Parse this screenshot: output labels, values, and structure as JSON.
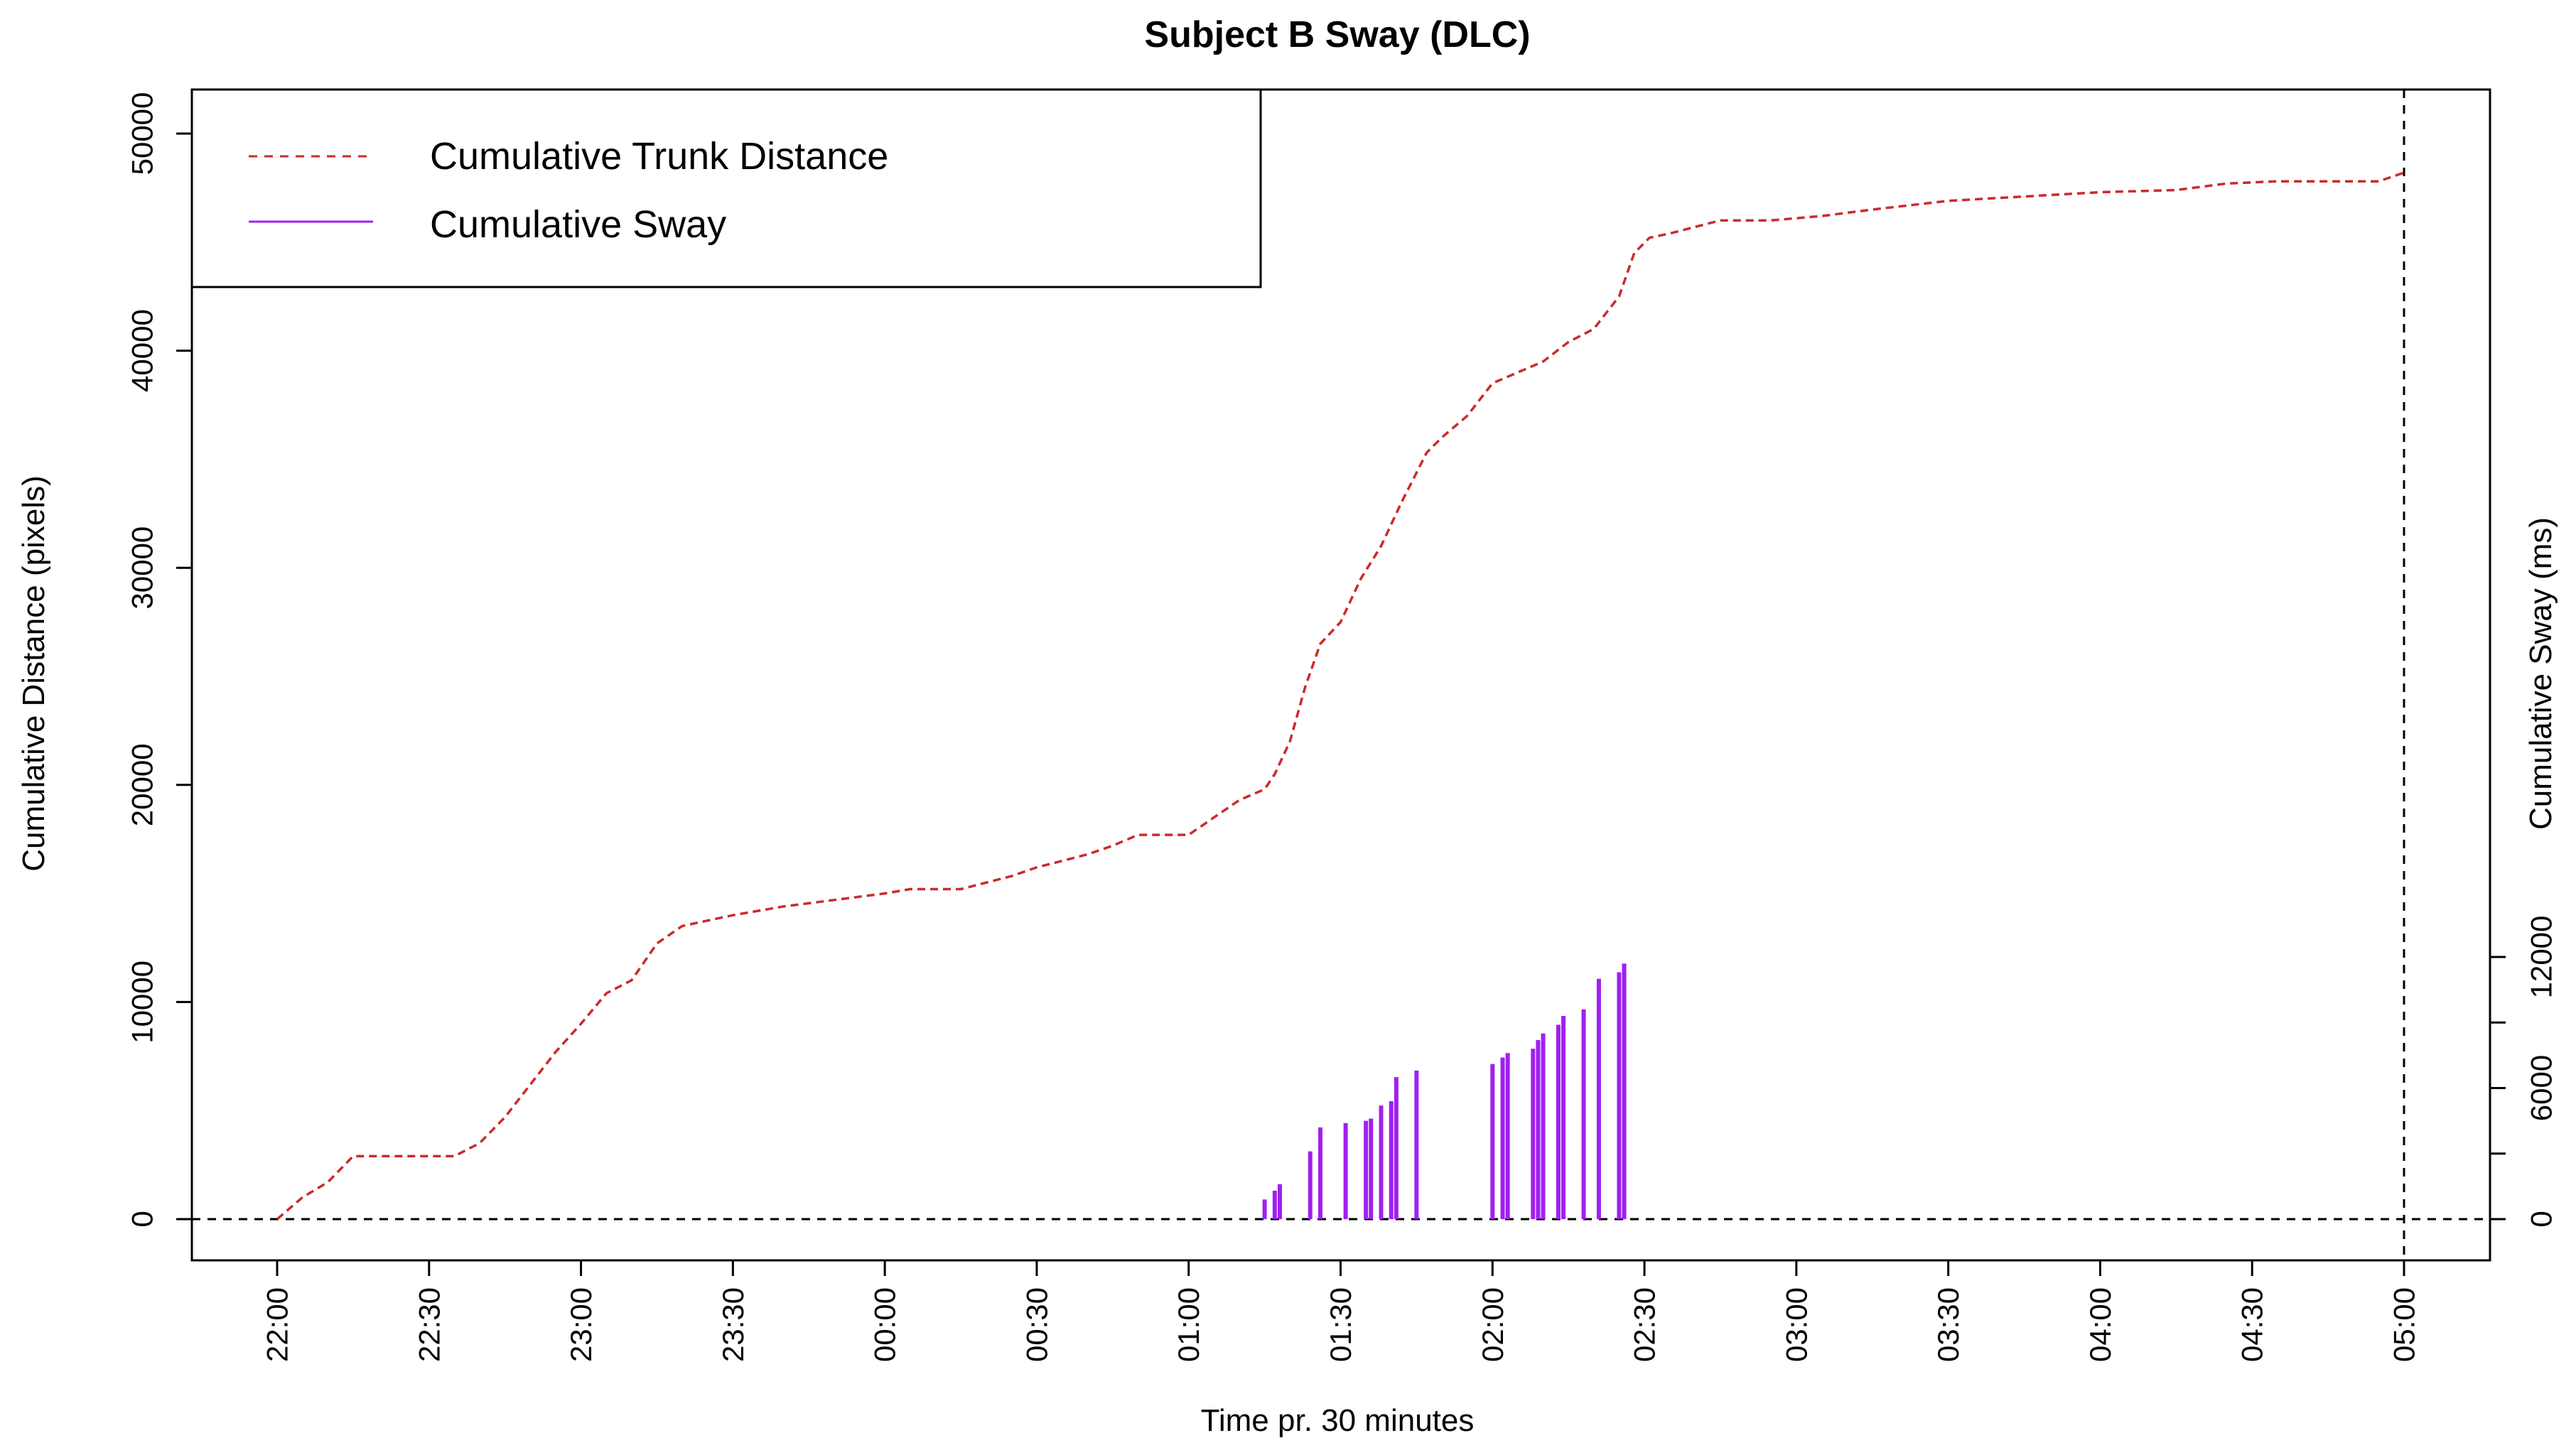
{
  "chart_data": {
    "type": "line",
    "title": "Subject B Sway (DLC)",
    "xlabel": "Time pr. 30 minutes",
    "ylabel_left": "Cumulative Distance (pixels)",
    "ylabel_right": "Cumulative Sway (ms)",
    "x_ticks": [
      "22:00",
      "22:30",
      "23:00",
      "23:30",
      "00:00",
      "00:30",
      "01:00",
      "01:30",
      "02:00",
      "02:30",
      "03:00",
      "03:30",
      "04:00",
      "04:30",
      "05:00"
    ],
    "y_left_ticks": [
      0,
      10000,
      20000,
      30000,
      40000,
      50000
    ],
    "y_right_ticks": [
      0,
      6000,
      12000
    ],
    "ylim_left": [
      0,
      50000
    ],
    "ylim_right": [
      0,
      12000
    ],
    "legend": {
      "position": "top-left",
      "entries": [
        {
          "label": "Cumulative Trunk Distance",
          "style": "dashed",
          "color": "#cc2a2a"
        },
        {
          "label": "Cumulative Sway",
          "style": "solid",
          "color": "#a020f0"
        }
      ]
    },
    "reference_lines": {
      "horizontal_y": 0,
      "vertical_x": "05:00",
      "style": "dashed"
    },
    "series": [
      {
        "name": "Cumulative Trunk Distance",
        "axis": "left",
        "color": "#cc2a2a",
        "style": "dashed",
        "points": [
          [
            "22:00",
            0
          ],
          [
            "22:05",
            1000
          ],
          [
            "22:10",
            1700
          ],
          [
            "22:15",
            2900
          ],
          [
            "22:20",
            2900
          ],
          [
            "22:30",
            2900
          ],
          [
            "22:35",
            2900
          ],
          [
            "22:40",
            3500
          ],
          [
            "22:45",
            4700
          ],
          [
            "22:50",
            6200
          ],
          [
            "22:55",
            7700
          ],
          [
            "23:00",
            9000
          ],
          [
            "23:05",
            10400
          ],
          [
            "23:10",
            11000
          ],
          [
            "23:15",
            12700
          ],
          [
            "23:20",
            13500
          ],
          [
            "23:30",
            14000
          ],
          [
            "23:40",
            14400
          ],
          [
            "23:50",
            14700
          ],
          [
            "00:00",
            15000
          ],
          [
            "00:05",
            15200
          ],
          [
            "00:15",
            15200
          ],
          [
            "00:25",
            15800
          ],
          [
            "00:30",
            16200
          ],
          [
            "00:40",
            16800
          ],
          [
            "00:45",
            17200
          ],
          [
            "00:50",
            17700
          ],
          [
            "01:00",
            17700
          ],
          [
            "01:05",
            18500
          ],
          [
            "01:10",
            19300
          ],
          [
            "01:15",
            19800
          ],
          [
            "01:17",
            20500
          ],
          [
            "01:20",
            22000
          ],
          [
            "01:23",
            24500
          ],
          [
            "01:26",
            26500
          ],
          [
            "01:30",
            27500
          ],
          [
            "01:34",
            29500
          ],
          [
            "01:38",
            31000
          ],
          [
            "01:42",
            33000
          ],
          [
            "01:47",
            35300
          ],
          [
            "01:50",
            36000
          ],
          [
            "01:55",
            37000
          ],
          [
            "02:00",
            38500
          ],
          [
            "02:05",
            39000
          ],
          [
            "02:10",
            39500
          ],
          [
            "02:15",
            40400
          ],
          [
            "02:20",
            41000
          ],
          [
            "02:25",
            42500
          ],
          [
            "02:28",
            44500
          ],
          [
            "02:31",
            45200
          ],
          [
            "02:35",
            45400
          ],
          [
            "02:40",
            45700
          ],
          [
            "02:45",
            46000
          ],
          [
            "02:55",
            46000
          ],
          [
            "03:05",
            46200
          ],
          [
            "03:15",
            46500
          ],
          [
            "03:30",
            46900
          ],
          [
            "03:45",
            47100
          ],
          [
            "04:00",
            47300
          ],
          [
            "04:15",
            47400
          ],
          [
            "04:25",
            47700
          ],
          [
            "04:35",
            47800
          ],
          [
            "04:45",
            47800
          ],
          [
            "04:55",
            47800
          ],
          [
            "05:00",
            48200
          ]
        ]
      },
      {
        "name": "Cumulative Sway",
        "axis": "right",
        "color": "#a020f0",
        "style": "vertical-bars",
        "points": [
          [
            "01:15",
            900
          ],
          [
            "01:17",
            1300
          ],
          [
            "01:18",
            1600
          ],
          [
            "01:24",
            3100
          ],
          [
            "01:26",
            4200
          ],
          [
            "01:31",
            4400
          ],
          [
            "01:35",
            4500
          ],
          [
            "01:36",
            4600
          ],
          [
            "01:38",
            5200
          ],
          [
            "01:40",
            5400
          ],
          [
            "01:41",
            6500
          ],
          [
            "01:45",
            6800
          ],
          [
            "02:00",
            7100
          ],
          [
            "02:02",
            7400
          ],
          [
            "02:03",
            7600
          ],
          [
            "02:08",
            7800
          ],
          [
            "02:09",
            8200
          ],
          [
            "02:10",
            8500
          ],
          [
            "02:13",
            8900
          ],
          [
            "02:14",
            9300
          ],
          [
            "02:18",
            9600
          ],
          [
            "02:21",
            11000
          ],
          [
            "02:25",
            11300
          ],
          [
            "02:26",
            11700
          ]
        ]
      }
    ]
  }
}
